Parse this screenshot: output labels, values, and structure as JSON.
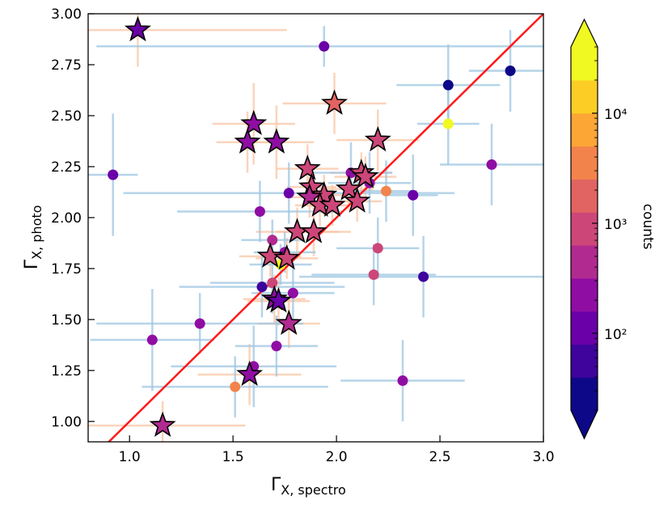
{
  "chart_data": {
    "type": "scatter",
    "title": "",
    "xlabel_main": "Γ",
    "xlabel_sub": "X, spectro",
    "ylabel_main": "Γ",
    "ylabel_sub": "X, photo",
    "xlim": [
      0.8,
      3.0
    ],
    "ylim": [
      0.9,
      3.0
    ],
    "xticks": [
      1.0,
      1.5,
      2.0,
      2.5,
      3.0
    ],
    "xtick_labels": [
      "1.0",
      "1.5",
      "2.0",
      "2.5",
      "3.0"
    ],
    "yticks": [
      1.0,
      1.25,
      1.5,
      1.75,
      2.0,
      2.25,
      2.5,
      2.75,
      3.0
    ],
    "ytick_labels": [
      "1.00",
      "1.25",
      "1.50",
      "1.75",
      "2.00",
      "2.25",
      "2.50",
      "2.75",
      "3.00"
    ],
    "one_to_one_line": {
      "color": "#ff1a1a",
      "label": "y = x"
    },
    "colorbar": {
      "label": "counts",
      "scale": "log",
      "range": [
        20,
        40000
      ],
      "ticks": [
        100,
        1000,
        10000
      ],
      "tick_labels": [
        "10²",
        "10³",
        "10⁴"
      ],
      "colors": [
        "#0d0887",
        "#3e049c",
        "#6a00a8",
        "#900da4",
        "#b12a90",
        "#cc4778",
        "#e16462",
        "#f2844b",
        "#fca636",
        "#fcce25",
        "#f0f921"
      ]
    },
    "errorbar_colors": {
      "circle": "#9ec5e2",
      "star": "#f9c6a6"
    },
    "series": [
      {
        "name": "stars",
        "marker": "star",
        "points": [
          {
            "x": 1.04,
            "y": 2.92,
            "counts": 140,
            "xerr": 0.72,
            "yerr": 0.18
          },
          {
            "x": 1.99,
            "y": 2.56,
            "counts": 1800,
            "xerr": 0.25,
            "yerr": 0.15
          },
          {
            "x": 1.6,
            "y": 2.46,
            "counts": 300,
            "xerr": 0.2,
            "yerr": 0.2
          },
          {
            "x": 1.57,
            "y": 2.37,
            "counts": 250,
            "xerr": 0.15,
            "yerr": 0.15
          },
          {
            "x": 1.71,
            "y": 2.37,
            "counts": 300,
            "xerr": 0.18,
            "yerr": 0.18
          },
          {
            "x": 2.2,
            "y": 2.38,
            "counts": 900,
            "xerr": 0.2,
            "yerr": 0.15
          },
          {
            "x": 1.86,
            "y": 2.24,
            "counts": 1200,
            "xerr": 0.15,
            "yerr": 0.12
          },
          {
            "x": 2.12,
            "y": 2.22,
            "counts": 1000,
            "xerr": 0.15,
            "yerr": 0.1
          },
          {
            "x": 2.14,
            "y": 2.2,
            "counts": 700,
            "xerr": 0.15,
            "yerr": 0.1
          },
          {
            "x": 1.88,
            "y": 2.15,
            "counts": 900,
            "xerr": 0.12,
            "yerr": 0.1
          },
          {
            "x": 2.06,
            "y": 2.14,
            "counts": 800,
            "xerr": 0.12,
            "yerr": 0.1
          },
          {
            "x": 1.94,
            "y": 2.11,
            "counts": 1100,
            "xerr": 0.12,
            "yerr": 0.1
          },
          {
            "x": 1.87,
            "y": 2.1,
            "counts": 600,
            "xerr": 0.12,
            "yerr": 0.1
          },
          {
            "x": 1.92,
            "y": 2.06,
            "counts": 900,
            "xerr": 0.12,
            "yerr": 0.1
          },
          {
            "x": 1.98,
            "y": 2.06,
            "counts": 1200,
            "xerr": 0.12,
            "yerr": 0.1
          },
          {
            "x": 2.1,
            "y": 2.08,
            "counts": 1000,
            "xerr": 0.12,
            "yerr": 0.1
          },
          {
            "x": 1.81,
            "y": 1.93,
            "counts": 1100,
            "xerr": 0.2,
            "yerr": 0.12
          },
          {
            "x": 1.89,
            "y": 1.93,
            "counts": 700,
            "xerr": 0.18,
            "yerr": 0.12
          },
          {
            "x": 1.68,
            "y": 1.81,
            "counts": 900,
            "xerr": 0.15,
            "yerr": 0.1
          },
          {
            "x": 1.76,
            "y": 1.8,
            "counts": 800,
            "xerr": 0.15,
            "yerr": 0.1
          },
          {
            "x": 1.7,
            "y": 1.6,
            "counts": 200,
            "xerr": 0.15,
            "yerr": 0.12
          },
          {
            "x": 1.72,
            "y": 1.59,
            "counts": 150,
            "xerr": 0.15,
            "yerr": 0.12
          },
          {
            "x": 1.77,
            "y": 1.48,
            "counts": 500,
            "xerr": 0.15,
            "yerr": 0.12
          },
          {
            "x": 1.58,
            "y": 1.23,
            "counts": 180,
            "xerr": 0.25,
            "yerr": 0.15
          },
          {
            "x": 1.16,
            "y": 0.98,
            "counts": 450,
            "xerr": 0.4,
            "yerr": 0.12
          }
        ]
      },
      {
        "name": "circles",
        "marker": "circle",
        "points": [
          {
            "x": 1.94,
            "y": 2.84,
            "counts": 130,
            "xerr": 1.1,
            "yerr": 0.1
          },
          {
            "x": 2.54,
            "y": 2.65,
            "counts": 35,
            "xerr": 0.25,
            "yerr": 0.2
          },
          {
            "x": 2.84,
            "y": 2.72,
            "counts": 35,
            "xerr": 0.2,
            "yerr": 0.2
          },
          {
            "x": 2.54,
            "y": 2.46,
            "counts": 30000,
            "xerr": 0.15,
            "yerr": 0.2
          },
          {
            "x": 0.92,
            "y": 2.21,
            "counts": 110,
            "xerr": 0.12,
            "yerr": 0.3
          },
          {
            "x": 2.75,
            "y": 2.26,
            "counts": 170,
            "xerr": 0.25,
            "yerr": 0.2
          },
          {
            "x": 2.37,
            "y": 2.11,
            "counts": 110,
            "xerr": 0.12,
            "yerr": 0.2
          },
          {
            "x": 2.24,
            "y": 2.13,
            "counts": 3500,
            "xerr": 0.15,
            "yerr": 0.15
          },
          {
            "x": 1.77,
            "y": 2.12,
            "counts": 130,
            "xerr": 0.8,
            "yerr": 0.15
          },
          {
            "x": 2.07,
            "y": 2.22,
            "counts": 250,
            "xerr": 0.2,
            "yerr": 0.15
          },
          {
            "x": 2.16,
            "y": 2.17,
            "counts": 180,
            "xerr": 0.2,
            "yerr": 0.15
          },
          {
            "x": 1.63,
            "y": 2.03,
            "counts": 180,
            "xerr": 0.4,
            "yerr": 0.15
          },
          {
            "x": 1.69,
            "y": 1.89,
            "counts": 500,
            "xerr": 0.15,
            "yerr": 0.1
          },
          {
            "x": 1.73,
            "y": 1.77,
            "counts": 40000,
            "xerr": 0.15,
            "yerr": 0.1
          },
          {
            "x": 1.75,
            "y": 1.83,
            "counts": 250,
            "xerr": 0.15,
            "yerr": 0.1
          },
          {
            "x": 2.2,
            "y": 1.85,
            "counts": 1000,
            "xerr": 0.2,
            "yerr": 0.15
          },
          {
            "x": 2.18,
            "y": 1.72,
            "counts": 650,
            "xerr": 0.3,
            "yerr": 0.15
          },
          {
            "x": 2.42,
            "y": 1.71,
            "counts": 40,
            "xerr": 0.6,
            "yerr": 0.2
          },
          {
            "x": 1.64,
            "y": 1.66,
            "counts": 40,
            "xerr": 0.4,
            "yerr": 0.15
          },
          {
            "x": 1.69,
            "y": 1.68,
            "counts": 800,
            "xerr": 0.3,
            "yerr": 0.15
          },
          {
            "x": 1.79,
            "y": 1.63,
            "counts": 200,
            "xerr": 0.2,
            "yerr": 0.15
          },
          {
            "x": 1.34,
            "y": 1.48,
            "counts": 180,
            "xerr": 0.5,
            "yerr": 0.15
          },
          {
            "x": 1.11,
            "y": 1.4,
            "counts": 200,
            "xerr": 0.3,
            "yerr": 0.25
          },
          {
            "x": 1.71,
            "y": 1.37,
            "counts": 250,
            "xerr": 0.2,
            "yerr": 0.15
          },
          {
            "x": 1.6,
            "y": 1.27,
            "counts": 200,
            "xerr": 0.4,
            "yerr": 0.2
          },
          {
            "x": 2.32,
            "y": 1.2,
            "counts": 270,
            "xerr": 0.3,
            "yerr": 0.2
          },
          {
            "x": 1.51,
            "y": 1.17,
            "counts": 3000,
            "xerr": 0.45,
            "yerr": 0.15
          }
        ]
      }
    ]
  }
}
